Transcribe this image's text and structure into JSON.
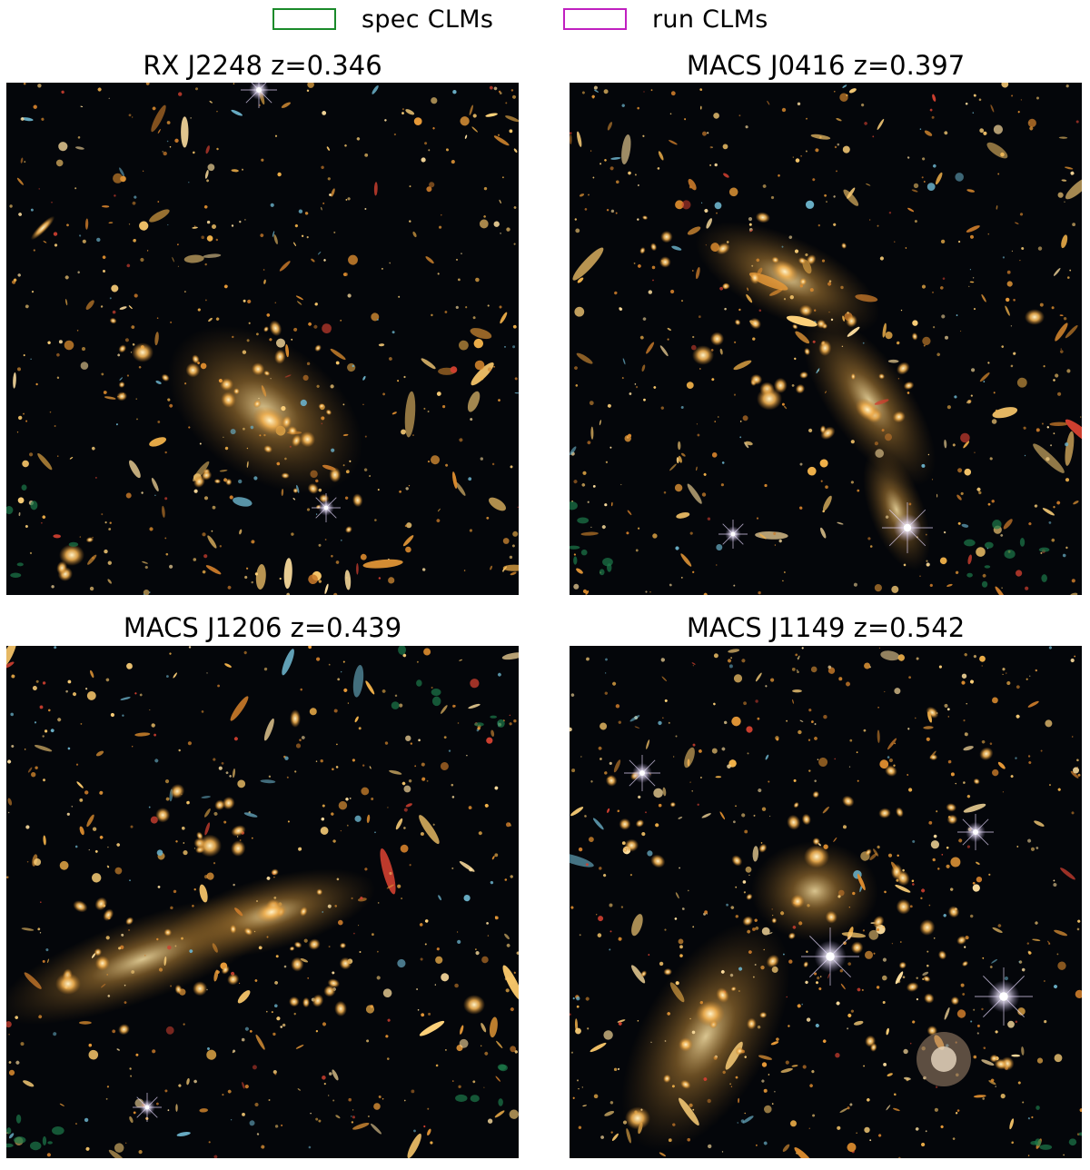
{
  "legend": {
    "items": [
      {
        "label": "spec CLMs",
        "color": "#1a8a2a"
      },
      {
        "label": "run CLMs",
        "color": "#c020c0"
      }
    ]
  },
  "panels": [
    {
      "title": "RX J2248 z=0.346",
      "icon": "galaxy-cluster-image"
    },
    {
      "title": "MACS J0416 z=0.397",
      "icon": "galaxy-cluster-image"
    },
    {
      "title": "MACS J1206 z=0.439",
      "icon": "galaxy-cluster-image"
    },
    {
      "title": "MACS J1149 z=0.542",
      "icon": "galaxy-cluster-image"
    }
  ]
}
